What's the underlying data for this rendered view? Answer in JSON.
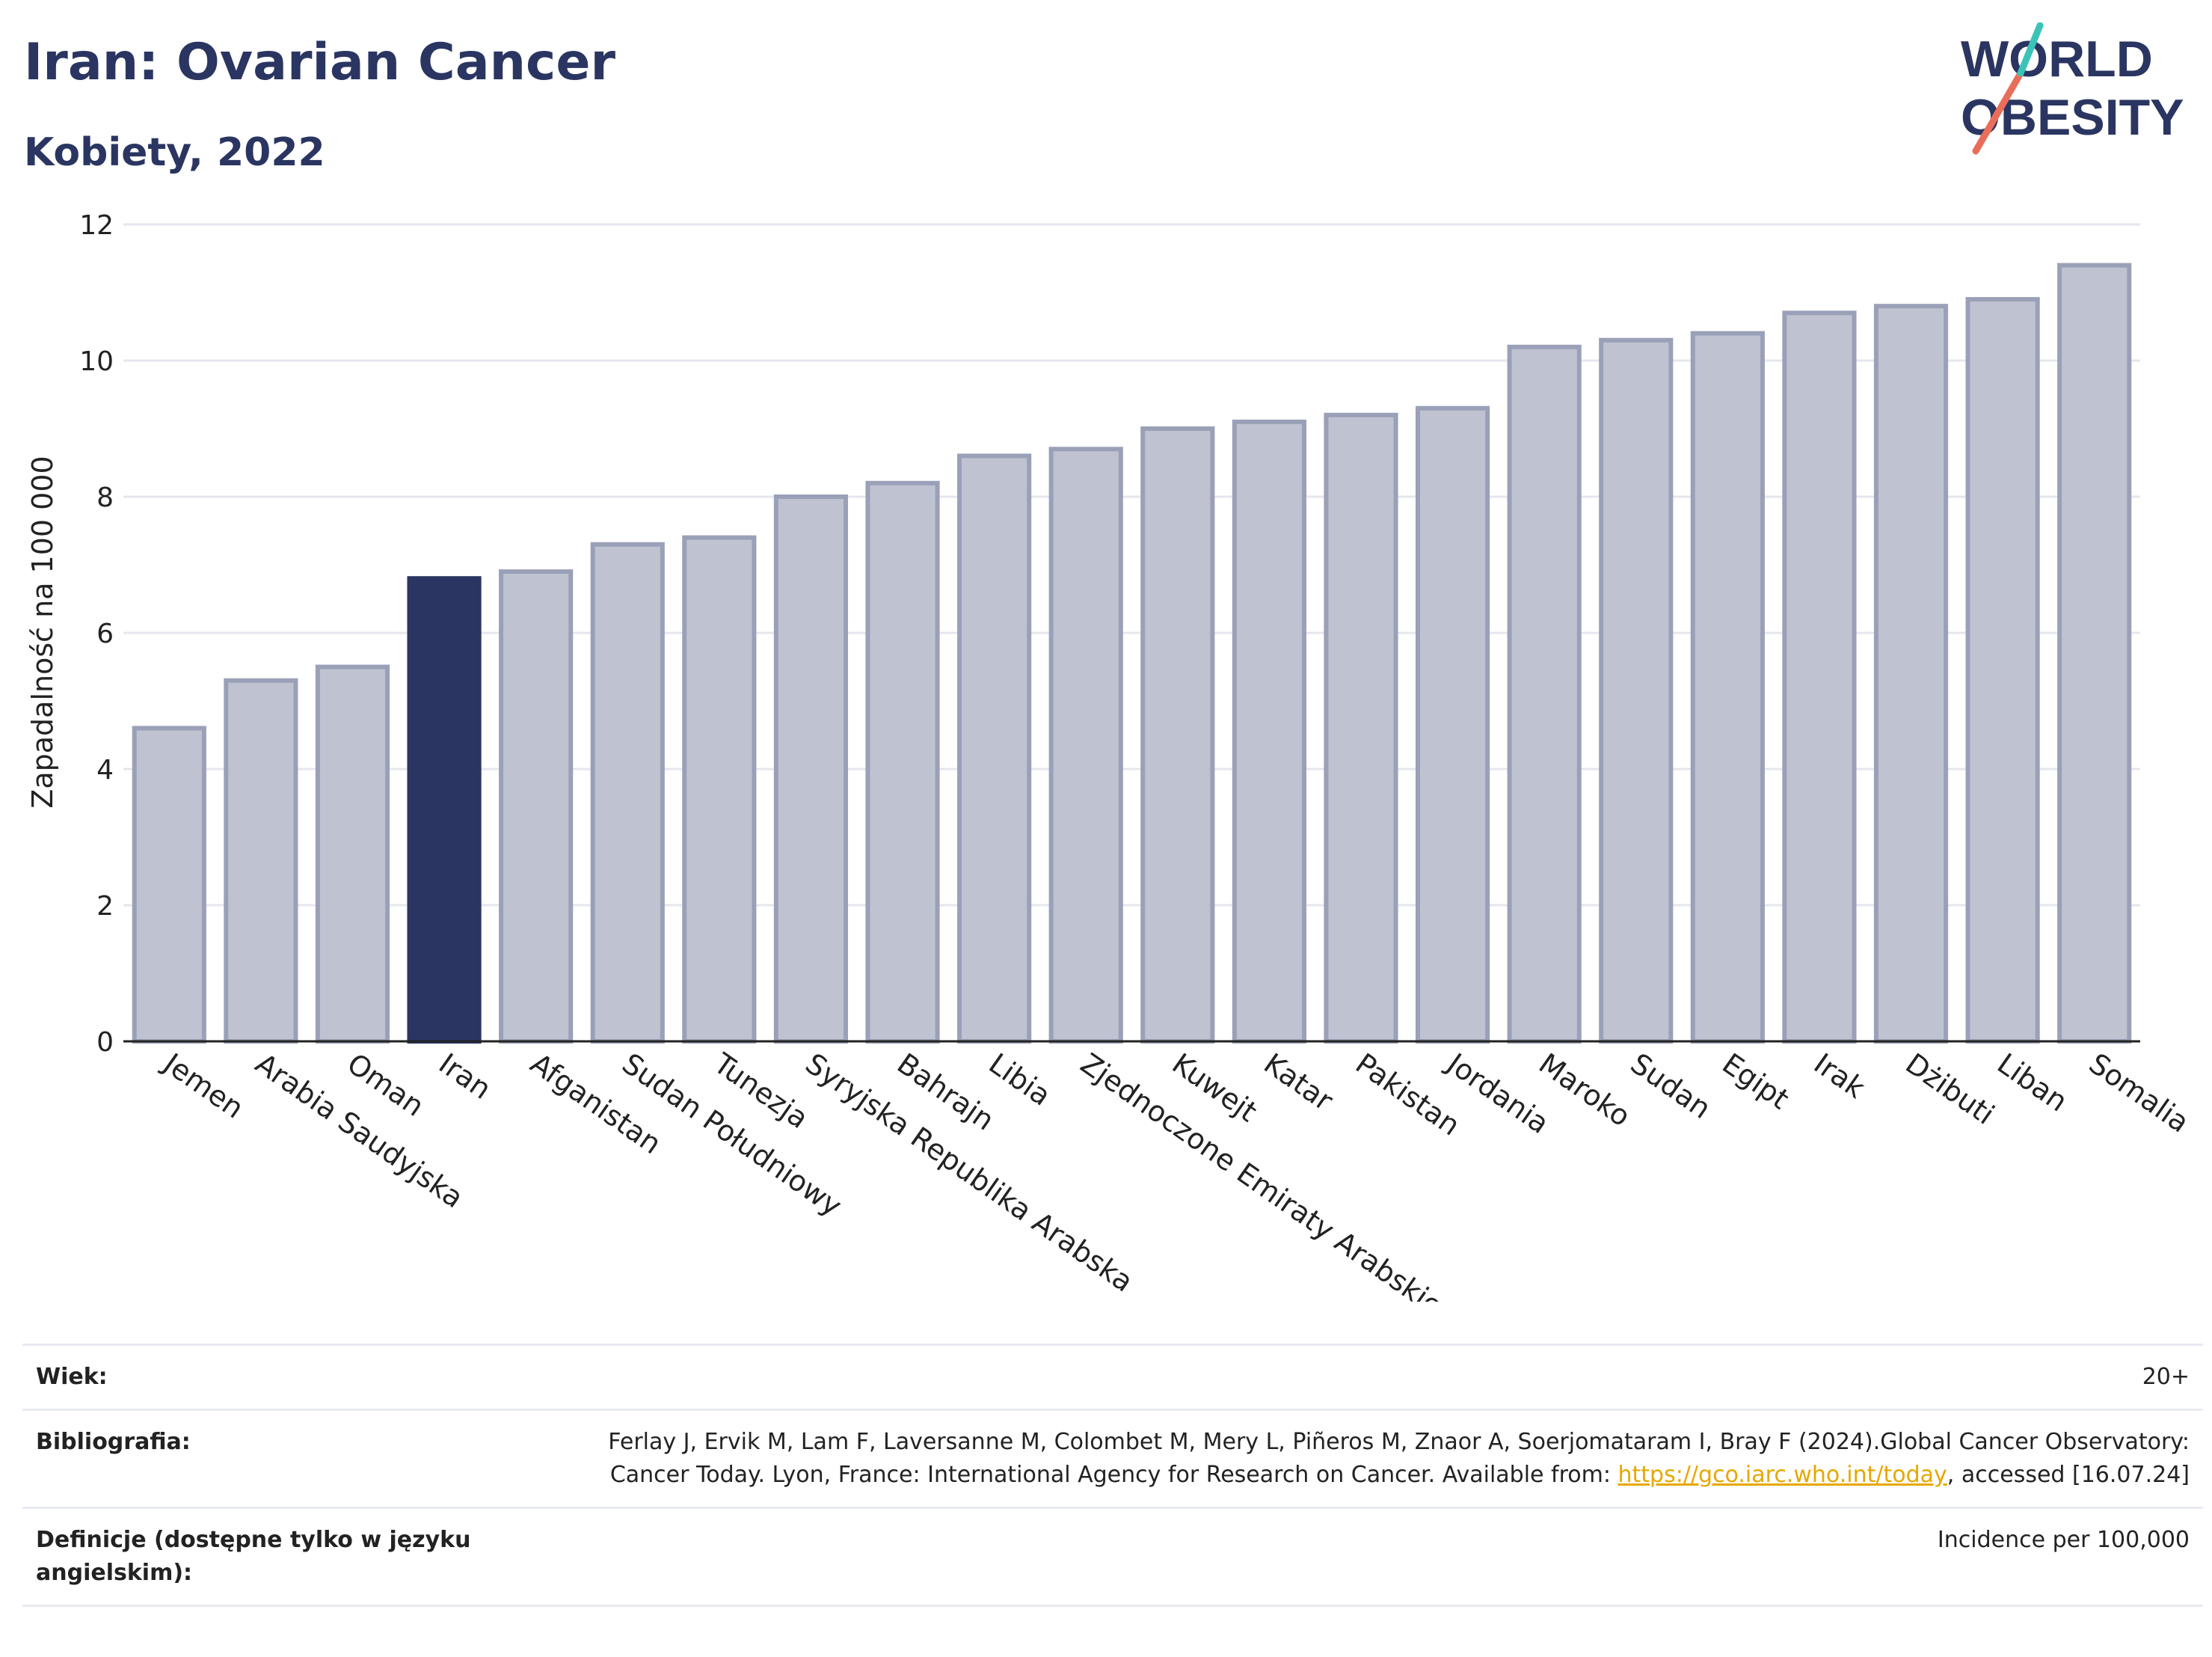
{
  "header": {
    "title": "Iran: Ovarian Cancer",
    "subtitle": "Kobiety, 2022"
  },
  "logo": {
    "line1": "WORLD",
    "line2": "OBESITY",
    "accent_color": "#e96e5a",
    "accent2_color": "#3cc3b8"
  },
  "colors": {
    "highlight": "#2a3561",
    "bar": "#bfc3d1",
    "bar_border": "#9aa0b7",
    "grid": "#e6e7ee"
  },
  "chart_data": {
    "type": "bar",
    "title": "Iran: Ovarian Cancer",
    "subtitle": "Kobiety, 2022",
    "ylabel": "Zapadalność na 100 000",
    "xlabel": "",
    "ylim": [
      0,
      12
    ],
    "yticks": [
      0,
      2,
      4,
      6,
      8,
      10,
      12
    ],
    "grid": true,
    "categories": [
      "Jemen",
      "Arabia Saudyjska",
      "Oman",
      "Iran",
      "Afganistan",
      "Sudan Południowy",
      "Tunezja",
      "Syryjska Republika Arabska",
      "Bahrajn",
      "Libia",
      "Zjednoczone Emiraty Arabskie",
      "Kuwejt",
      "Katar",
      "Pakistan",
      "Jordania",
      "Maroko",
      "Sudan",
      "Egipt",
      "Irak",
      "Dżibuti",
      "Liban",
      "Somalia"
    ],
    "values": [
      4.6,
      5.3,
      5.5,
      6.8,
      6.9,
      7.3,
      7.4,
      8.0,
      8.2,
      8.6,
      8.7,
      9.0,
      9.1,
      9.2,
      9.3,
      10.2,
      10.3,
      10.4,
      10.7,
      10.8,
      10.9,
      11.4
    ],
    "highlight": "Iran"
  },
  "footer": {
    "age_label": "Wiek:",
    "age_value": "20+",
    "bib_label": "Bibliografia:",
    "bib_text_1": "Ferlay J, Ervik M, Lam F, Laversanne M, Colombet M, Mery L, Piñeros M, Znaor A, Soerjomataram I, Bray F (2024).Global Cancer Observatory: Cancer Today. Lyon, France: International Agency for Research on Cancer. Available from: ",
    "bib_link": "https://gco.iarc.who.int/today",
    "bib_text_2": ", accessed [16.07.24]",
    "def_label": "Definicje (dostępne tylko w języku angielskim):",
    "def_value": "Incidence per 100,000"
  }
}
